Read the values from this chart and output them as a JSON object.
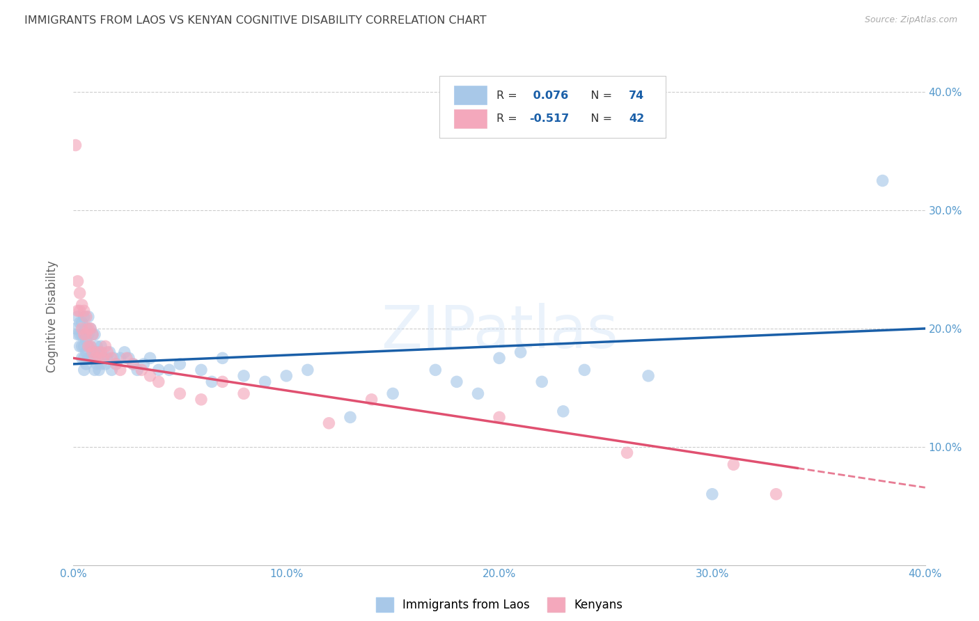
{
  "title": "IMMIGRANTS FROM LAOS VS KENYAN COGNITIVE DISABILITY CORRELATION CHART",
  "source": "Source: ZipAtlas.com",
  "ylabel": "Cognitive Disability",
  "xlim": [
    0.0,
    0.4
  ],
  "ylim": [
    0.0,
    0.42
  ],
  "xticks": [
    0.0,
    0.1,
    0.2,
    0.3,
    0.4
  ],
  "yticks": [
    0.1,
    0.2,
    0.3,
    0.4
  ],
  "xtick_labels": [
    "0.0%",
    "10.0%",
    "20.0%",
    "30.0%",
    "40.0%"
  ],
  "ytick_labels": [
    "10.0%",
    "20.0%",
    "30.0%",
    "40.0%"
  ],
  "blue_color": "#a8c8e8",
  "pink_color": "#f4a8bc",
  "blue_line_color": "#1a5fa8",
  "pink_line_color": "#e05070",
  "background_color": "#ffffff",
  "grid_color": "#cccccc",
  "title_color": "#444444",
  "axis_label_color": "#666666",
  "tick_label_color": "#5599cc",
  "watermark": "ZIPatlas",
  "r_blue_str": "0.076",
  "n_blue_str": "74",
  "r_pink_str": "-0.517",
  "n_pink_str": "42",
  "legend_label_blue": "Immigrants from Laos",
  "legend_label_pink": "Kenyans",
  "blue_line_start_y": 0.17,
  "blue_line_end_y": 0.2,
  "pink_line_start_y": 0.175,
  "pink_line_end_x": 0.34,
  "pink_line_end_y": 0.082,
  "blue_points_x": [
    0.001,
    0.002,
    0.002,
    0.003,
    0.003,
    0.003,
    0.004,
    0.004,
    0.004,
    0.004,
    0.005,
    0.005,
    0.005,
    0.005,
    0.005,
    0.006,
    0.006,
    0.006,
    0.006,
    0.007,
    0.007,
    0.007,
    0.007,
    0.008,
    0.008,
    0.008,
    0.009,
    0.009,
    0.01,
    0.01,
    0.01,
    0.011,
    0.011,
    0.012,
    0.012,
    0.013,
    0.013,
    0.014,
    0.015,
    0.016,
    0.017,
    0.018,
    0.019,
    0.02,
    0.022,
    0.024,
    0.026,
    0.028,
    0.03,
    0.033,
    0.036,
    0.04,
    0.045,
    0.05,
    0.06,
    0.065,
    0.07,
    0.08,
    0.09,
    0.1,
    0.11,
    0.13,
    0.15,
    0.17,
    0.18,
    0.19,
    0.2,
    0.21,
    0.22,
    0.23,
    0.24,
    0.27,
    0.3,
    0.38
  ],
  "blue_points_y": [
    0.2,
    0.195,
    0.21,
    0.185,
    0.195,
    0.205,
    0.175,
    0.185,
    0.195,
    0.205,
    0.165,
    0.175,
    0.185,
    0.195,
    0.21,
    0.17,
    0.18,
    0.19,
    0.2,
    0.175,
    0.185,
    0.195,
    0.21,
    0.175,
    0.185,
    0.2,
    0.18,
    0.195,
    0.165,
    0.18,
    0.195,
    0.17,
    0.185,
    0.165,
    0.18,
    0.17,
    0.185,
    0.175,
    0.17,
    0.175,
    0.18,
    0.165,
    0.175,
    0.17,
    0.175,
    0.18,
    0.175,
    0.17,
    0.165,
    0.17,
    0.175,
    0.165,
    0.165,
    0.17,
    0.165,
    0.155,
    0.175,
    0.16,
    0.155,
    0.16,
    0.165,
    0.125,
    0.145,
    0.165,
    0.155,
    0.145,
    0.175,
    0.18,
    0.155,
    0.13,
    0.165,
    0.16,
    0.06,
    0.325
  ],
  "pink_points_x": [
    0.001,
    0.002,
    0.002,
    0.003,
    0.003,
    0.004,
    0.004,
    0.005,
    0.005,
    0.006,
    0.006,
    0.007,
    0.007,
    0.008,
    0.008,
    0.009,
    0.009,
    0.01,
    0.011,
    0.012,
    0.013,
    0.014,
    0.015,
    0.016,
    0.018,
    0.02,
    0.022,
    0.025,
    0.028,
    0.032,
    0.036,
    0.04,
    0.05,
    0.06,
    0.07,
    0.08,
    0.12,
    0.14,
    0.2,
    0.26,
    0.31,
    0.33
  ],
  "pink_points_y": [
    0.355,
    0.215,
    0.24,
    0.215,
    0.23,
    0.2,
    0.22,
    0.195,
    0.215,
    0.195,
    0.21,
    0.185,
    0.2,
    0.185,
    0.2,
    0.18,
    0.195,
    0.175,
    0.18,
    0.175,
    0.18,
    0.175,
    0.185,
    0.18,
    0.175,
    0.17,
    0.165,
    0.175,
    0.17,
    0.165,
    0.16,
    0.155,
    0.145,
    0.14,
    0.155,
    0.145,
    0.12,
    0.14,
    0.125,
    0.095,
    0.085,
    0.06
  ]
}
